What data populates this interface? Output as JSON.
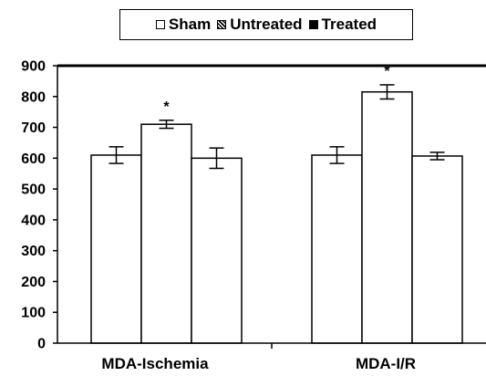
{
  "chart_data": {
    "type": "bar",
    "categories": [
      "MDA-Ischemia",
      "MDA-I/R"
    ],
    "series": [
      {
        "name": "Sham",
        "values": [
          610,
          610
        ],
        "errors": [
          27,
          27
        ],
        "fill": "white"
      },
      {
        "name": "Untreated",
        "values": [
          710,
          815
        ],
        "errors": [
          13,
          23
        ],
        "fill": "white"
      },
      {
        "name": "Treated",
        "values": [
          600,
          607
        ],
        "errors": [
          33,
          12
        ],
        "fill": "white"
      }
    ],
    "significance": [
      {
        "category_index": 0,
        "series_index": 1,
        "label": "*"
      },
      {
        "category_index": 1,
        "series_index": 1,
        "label": "*"
      }
    ],
    "ylim": [
      0,
      900
    ],
    "yticks": [
      "0",
      "100",
      "200",
      "300",
      "400",
      "500",
      "600",
      "700",
      "800",
      "900"
    ],
    "legend": {
      "placement": "top-center",
      "entries": [
        "Sham",
        "Untreated",
        "Treated"
      ],
      "swatches": [
        "open-square",
        "hatched-square",
        "filled-square"
      ]
    },
    "title": "",
    "xlabel": "",
    "ylabel": "",
    "grid": false
  }
}
